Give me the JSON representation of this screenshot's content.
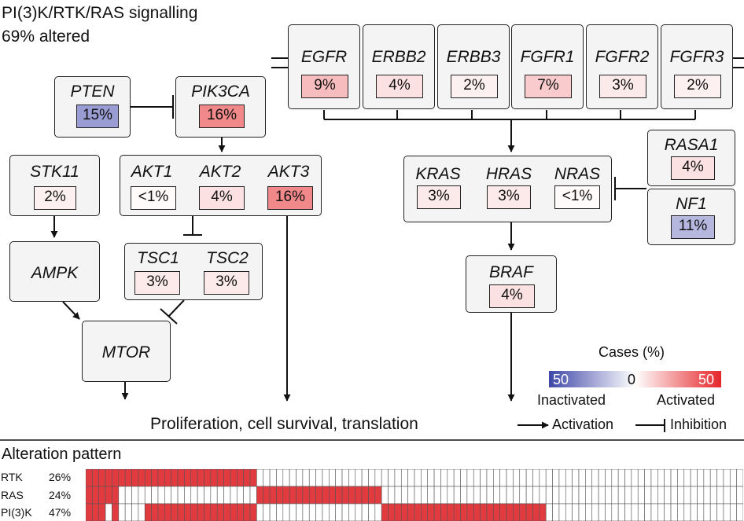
{
  "title": {
    "line1": "PI(3)K/RTK/RAS signalling",
    "line2": "69% altered"
  },
  "rtk_genes": [
    {
      "gene": "EGFR",
      "pct": "9%",
      "value": 9
    },
    {
      "gene": "ERBB2",
      "pct": "4%",
      "value": 4
    },
    {
      "gene": "ERBB3",
      "pct": "2%",
      "value": 2
    },
    {
      "gene": "FGFR1",
      "pct": "7%",
      "value": 7
    },
    {
      "gene": "FGFR2",
      "pct": "3%",
      "value": 3
    },
    {
      "gene": "FGFR3",
      "pct": "2%",
      "value": 2
    }
  ],
  "pten": {
    "gene": "PTEN",
    "pct": "15%",
    "value": -15
  },
  "pik3ca": {
    "gene": "PIK3CA",
    "pct": "16%",
    "value": 16
  },
  "stk11": {
    "gene": "STK11",
    "pct": "2%",
    "value": 2
  },
  "akt": [
    {
      "gene": "AKT1",
      "pct": "<1%",
      "value": 0.5
    },
    {
      "gene": "AKT2",
      "pct": "4%",
      "value": 4
    },
    {
      "gene": "AKT3",
      "pct": "16%",
      "value": 16
    }
  ],
  "ampk": "AMPK",
  "tsc": [
    {
      "gene": "TSC1",
      "pct": "3%",
      "value": 3
    },
    {
      "gene": "TSC2",
      "pct": "3%",
      "value": 3
    }
  ],
  "mtor": "MTOR",
  "ras": [
    {
      "gene": "KRAS",
      "pct": "3%",
      "value": 3
    },
    {
      "gene": "HRAS",
      "pct": "3%",
      "value": 3
    },
    {
      "gene": "NRAS",
      "pct": "<1%",
      "value": 0.5
    }
  ],
  "rasa1": {
    "gene": "RASA1",
    "pct": "4%",
    "value": 4
  },
  "nf1": {
    "gene": "NF1",
    "pct": "11%",
    "value": -11
  },
  "braf": {
    "gene": "BRAF",
    "pct": "4%",
    "value": 4
  },
  "outcome": "Proliferation, cell survival, translation",
  "legend": {
    "title": "Cases (%)",
    "left_value": "50",
    "mid_value": "0",
    "right_value": "50",
    "inactivated": "Inactivated",
    "activated": "Activated",
    "activation": "Activation",
    "inhibition": "Inhibition",
    "color_inactivated": "#4a4fb0",
    "color_activated": "#e8373b"
  },
  "pattern": {
    "title": "Alteration pattern",
    "columns": 100,
    "fill_color": "#e23b3f",
    "rows": [
      {
        "label": "RTK",
        "pct": "26%",
        "ranges": [
          [
            0,
            26
          ]
        ]
      },
      {
        "label": "RAS",
        "pct": "24%",
        "ranges": [
          [
            0,
            5
          ],
          [
            26,
            45
          ]
        ]
      },
      {
        "label": "PI(3)K",
        "pct": "47%",
        "ranges": [
          [
            0,
            3
          ],
          [
            4,
            5
          ],
          [
            9,
            26
          ],
          [
            45,
            70
          ]
        ]
      }
    ]
  }
}
